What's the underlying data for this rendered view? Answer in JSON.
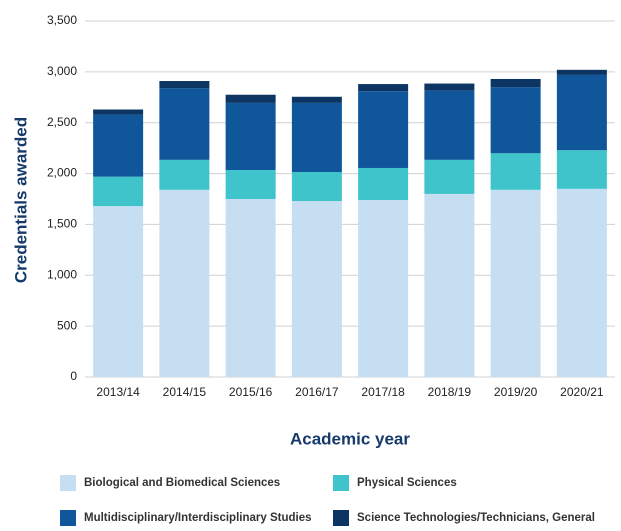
{
  "chart_data": {
    "type": "stacked_bar",
    "y_label": "Credentials awarded",
    "x_label": "Academic year",
    "categories": [
      "2013/14",
      "2014/15",
      "2015/16",
      "2016/17",
      "2017/18",
      "2018/19",
      "2019/20",
      "2020/21"
    ],
    "series": [
      {
        "name": "Biological and Biomedical Sciences",
        "color": "#c6def1",
        "values": [
          1680,
          1840,
          1750,
          1730,
          1740,
          1800,
          1840,
          1850
        ]
      },
      {
        "name": "Physical Sciences",
        "color": "#3fc4cc",
        "values": [
          290,
          295,
          285,
          285,
          315,
          335,
          360,
          380
        ]
      },
      {
        "name": "Multidisciplinary/Interdisciplinary Studies",
        "color": "#0f579a",
        "values": [
          610,
          705,
          660,
          680,
          755,
          680,
          650,
          740
        ]
      },
      {
        "name": "Science Technologies/Technicians, General",
        "color": "#0d3563",
        "values": [
          50,
          70,
          80,
          60,
          70,
          70,
          80,
          50
        ]
      }
    ],
    "ylim": [
      0,
      3500
    ],
    "yticks": [
      0,
      500,
      {
        "value": 1000,
        "label": "1,000"
      },
      {
        "value": 1500,
        "label": "1,500"
      },
      {
        "value": 2000,
        "label": "2,000"
      },
      {
        "value": 2500,
        "label": "2,500"
      },
      {
        "value": 3000,
        "label": "3,000"
      },
      {
        "value": 3500,
        "label": "3,500"
      }
    ],
    "grid": true
  }
}
